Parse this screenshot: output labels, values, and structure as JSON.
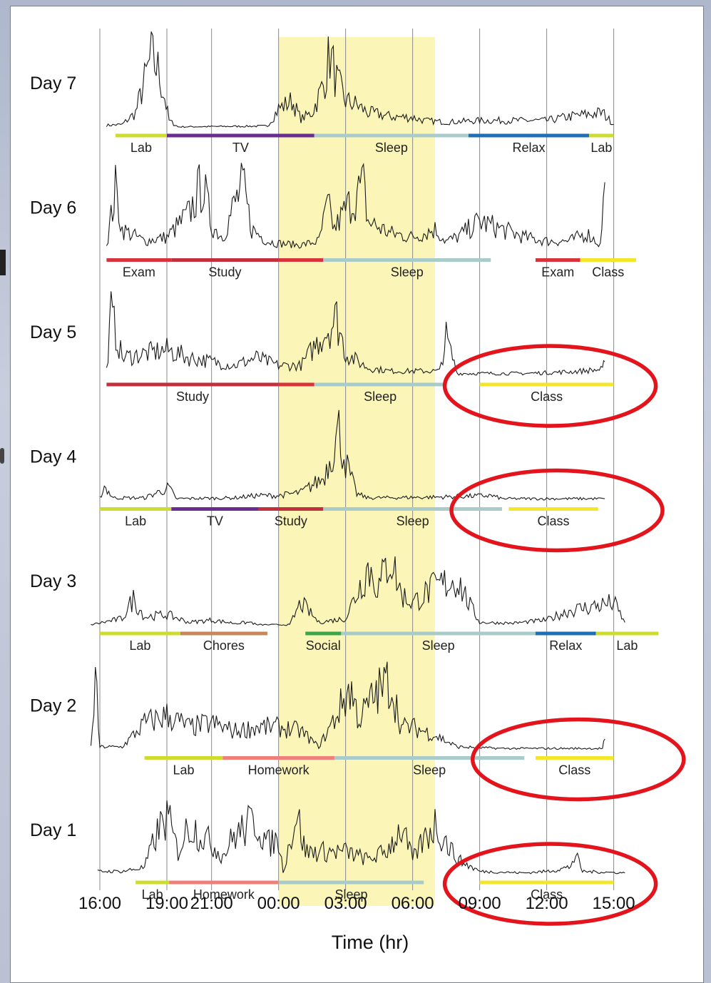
{
  "chart_data": {
    "type": "line",
    "xlabel": "Time (hr)",
    "x_ticks": [
      "16:00",
      "19:00",
      "21:00",
      "00:00",
      "03:00",
      "06:00",
      "09:00",
      "12:00",
      "15:00"
    ],
    "highlight_band": {
      "label": "",
      "start": "00:00",
      "end": "07:00",
      "color": "#fbf6b8"
    },
    "activity_colors": {
      "Lab": "#cddc2e",
      "TV": "#6b2c91",
      "Sleep": "#a9cccb",
      "Relax": "#1e6fb5",
      "Exam": "#d8323a",
      "Study": "#c0303d",
      "Class": "#f3e62c",
      "Chores": "#c8875a",
      "Social": "#3aa648",
      "Homework": "#f07f7a"
    },
    "days": [
      {
        "label": "Day 7",
        "signal": [
          [
            16.3,
            0.04
          ],
          [
            17,
            0.05
          ],
          [
            17.6,
            0.2
          ],
          [
            18,
            0.6
          ],
          [
            18.3,
            0.9
          ],
          [
            18.6,
            0.75
          ],
          [
            18.9,
            0.4
          ],
          [
            19.1,
            0.1
          ],
          [
            19.5,
            0.02
          ],
          [
            23.5,
            0.03
          ],
          [
            24,
            0.25
          ],
          [
            24.6,
            0.35
          ],
          [
            25,
            0.12
          ],
          [
            25.5,
            0.2
          ],
          [
            26,
            0.55
          ],
          [
            26.3,
            0.95
          ],
          [
            26.6,
            0.6
          ],
          [
            27,
            0.35
          ],
          [
            27.5,
            0.3
          ],
          [
            28,
            0.2
          ],
          [
            28.5,
            0.18
          ],
          [
            29,
            0.15
          ],
          [
            30,
            0.14
          ],
          [
            30.5,
            0.1
          ],
          [
            31.5,
            0.08
          ],
          [
            33,
            0.1
          ],
          [
            36,
            0.1
          ],
          [
            37,
            0.15
          ],
          [
            38.5,
            0.2
          ],
          [
            39,
            0.05
          ]
        ],
        "segments": [
          {
            "activity": "Lab",
            "start": 16.7,
            "end": 19.0,
            "label": "Lab"
          },
          {
            "activity": "TV",
            "start": 19.0,
            "end": 25.6,
            "label": "TV"
          },
          {
            "activity": "Sleep",
            "start": 25.6,
            "end": 32.5,
            "label": "Sleep"
          },
          {
            "activity": "Relax",
            "start": 32.5,
            "end": 37.9,
            "label": "Relax"
          },
          {
            "activity": "Lab",
            "start": 37.9,
            "end": 39.0,
            "label": "Lab"
          }
        ]
      },
      {
        "label": "Day 6",
        "signal": [
          [
            16.3,
            0.1
          ],
          [
            16.7,
            0.8
          ],
          [
            17,
            0.3
          ],
          [
            18,
            0.15
          ],
          [
            19,
            0.2
          ],
          [
            20,
            0.5
          ],
          [
            20.6,
            0.9
          ],
          [
            21,
            0.35
          ],
          [
            21.5,
            0.2
          ],
          [
            22,
            0.6
          ],
          [
            22.4,
            0.85
          ],
          [
            22.8,
            0.3
          ],
          [
            23.5,
            0.15
          ],
          [
            24,
            0.12
          ],
          [
            25,
            0.1
          ],
          [
            25.8,
            0.15
          ],
          [
            26.2,
            0.6
          ],
          [
            26.5,
            0.3
          ],
          [
            27,
            0.55
          ],
          [
            27.8,
            0.85
          ],
          [
            28,
            0.4
          ],
          [
            29,
            0.25
          ],
          [
            30,
            0.2
          ],
          [
            31,
            0.3
          ],
          [
            31.5,
            0.15
          ],
          [
            32,
            0.2
          ],
          [
            33,
            0.4
          ],
          [
            34,
            0.3
          ],
          [
            35,
            0.2
          ],
          [
            36,
            0.15
          ],
          [
            37,
            0.15
          ],
          [
            37.8,
            0.25
          ],
          [
            38.4,
            0.1
          ],
          [
            38.6,
            0.9
          ]
        ],
        "segments": [
          {
            "activity": "Exam",
            "start": 16.3,
            "end": 19.2,
            "label": "Exam"
          },
          {
            "activity": "Study",
            "start": 19.2,
            "end": 24.0,
            "label": "Study"
          },
          {
            "activity": "Exam",
            "start": 24.0,
            "end": 26.0,
            "label": ""
          },
          {
            "activity": "Sleep",
            "start": 26.0,
            "end": 33.5,
            "label": "Sleep"
          },
          {
            "activity": "Exam",
            "start": 35.5,
            "end": 37.5,
            "label": "Exam"
          },
          {
            "activity": "Class",
            "start": 37.5,
            "end": 40.0,
            "label": "Class"
          }
        ]
      },
      {
        "label": "Day 5",
        "signal": [
          [
            16.3,
            0.1
          ],
          [
            16.5,
            0.8
          ],
          [
            17,
            0.25
          ],
          [
            18,
            0.3
          ],
          [
            19,
            0.35
          ],
          [
            20,
            0.25
          ],
          [
            21,
            0.2
          ],
          [
            22,
            0.15
          ],
          [
            23,
            0.25
          ],
          [
            24,
            0.15
          ],
          [
            25,
            0.15
          ],
          [
            26,
            0.55
          ],
          [
            26.6,
            0.75
          ],
          [
            27,
            0.3
          ],
          [
            28,
            0.12
          ],
          [
            29,
            0.08
          ],
          [
            31.2,
            0.08
          ],
          [
            31.5,
            0.5
          ],
          [
            32,
            0.05
          ],
          [
            35,
            0.05
          ],
          [
            37,
            0.07
          ],
          [
            38.5,
            0.1
          ],
          [
            38.6,
            0.2
          ]
        ],
        "segments": [
          {
            "activity": "Study",
            "start": 16.3,
            "end": 24.0,
            "label": "Study"
          },
          {
            "activity": "Exam",
            "start": 24.0,
            "end": 25.6,
            "label": ""
          },
          {
            "activity": "Sleep",
            "start": 25.6,
            "end": 31.5,
            "label": "Sleep"
          },
          {
            "activity": "Class",
            "start": 33.0,
            "end": 39.0,
            "label": "Class"
          }
        ]
      },
      {
        "label": "Day 4",
        "signal": [
          [
            16.0,
            0.05
          ],
          [
            16.2,
            0.2
          ],
          [
            16.6,
            0.05
          ],
          [
            18,
            0.05
          ],
          [
            19.1,
            0.18
          ],
          [
            19.4,
            0.04
          ],
          [
            22,
            0.05
          ],
          [
            23,
            0.08
          ],
          [
            24,
            0.08
          ],
          [
            25,
            0.12
          ],
          [
            26,
            0.3
          ],
          [
            26.7,
            0.9
          ],
          [
            27,
            0.5
          ],
          [
            27.5,
            0.1
          ],
          [
            28,
            0.05
          ],
          [
            31,
            0.06
          ],
          [
            33.5,
            0.08
          ],
          [
            34,
            0.04
          ],
          [
            38,
            0.04
          ],
          [
            38.6,
            0.04
          ]
        ],
        "segments": [
          {
            "activity": "Lab",
            "start": 16.0,
            "end": 19.2,
            "label": "Lab"
          },
          {
            "activity": "TV",
            "start": 19.2,
            "end": 23.1,
            "label": "TV"
          },
          {
            "activity": "Study",
            "start": 23.1,
            "end": 26.0,
            "label": "Study"
          },
          {
            "activity": "Sleep",
            "start": 26.0,
            "end": 34.0,
            "label": "Sleep"
          },
          {
            "activity": "Class",
            "start": 34.3,
            "end": 38.3,
            "label": "Class"
          }
        ]
      },
      {
        "label": "Day 3",
        "signal": [
          [
            15.6,
            0.02
          ],
          [
            17,
            0.1
          ],
          [
            17.5,
            0.35
          ],
          [
            18,
            0.12
          ],
          [
            19,
            0.15
          ],
          [
            20,
            0.05
          ],
          [
            21,
            0.08
          ],
          [
            22,
            0.04
          ],
          [
            22.8,
            0.05
          ],
          [
            23,
            0.02
          ],
          [
            24.5,
            0.02
          ],
          [
            25,
            0.3
          ],
          [
            25.8,
            0.05
          ],
          [
            27,
            0.1
          ],
          [
            28,
            0.75
          ],
          [
            28.5,
            0.5
          ],
          [
            29,
            0.9
          ],
          [
            29.5,
            0.4
          ],
          [
            30,
            0.3
          ],
          [
            31,
            0.5
          ],
          [
            32,
            0.6
          ],
          [
            32.5,
            0.3
          ],
          [
            33,
            0.05
          ],
          [
            34.5,
            0.04
          ],
          [
            36,
            0.08
          ],
          [
            37,
            0.2
          ],
          [
            38,
            0.25
          ],
          [
            39,
            0.3
          ],
          [
            39.5,
            0.05
          ]
        ],
        "segments": [
          {
            "activity": "Lab",
            "start": 16.0,
            "end": 19.6,
            "label": "Lab"
          },
          {
            "activity": "Chores",
            "start": 19.6,
            "end": 23.5,
            "label": "Chores"
          },
          {
            "activity": "Social",
            "start": 25.2,
            "end": 26.8,
            "label": "Social"
          },
          {
            "activity": "Sleep",
            "start": 26.8,
            "end": 35.5,
            "label": "Sleep"
          },
          {
            "activity": "Relax",
            "start": 35.5,
            "end": 38.2,
            "label": "Relax"
          },
          {
            "activity": "Lab",
            "start": 38.2,
            "end": 41.0,
            "label": "Lab"
          }
        ]
      },
      {
        "label": "Day 2",
        "signal": [
          [
            15.6,
            0.05
          ],
          [
            15.8,
            0.9
          ],
          [
            16,
            0.05
          ],
          [
            17,
            0.05
          ],
          [
            18,
            0.35
          ],
          [
            19,
            0.45
          ],
          [
            20,
            0.3
          ],
          [
            21,
            0.35
          ],
          [
            22,
            0.25
          ],
          [
            23,
            0.3
          ],
          [
            24,
            0.3
          ],
          [
            25,
            0.25
          ],
          [
            25.8,
            0.05
          ],
          [
            26.5,
            0.4
          ],
          [
            27.2,
            0.8
          ],
          [
            27.6,
            0.4
          ],
          [
            28.3,
            0.7
          ],
          [
            29,
            0.9
          ],
          [
            29.5,
            0.3
          ],
          [
            30,
            0.3
          ],
          [
            31,
            0.2
          ],
          [
            32,
            0.05
          ],
          [
            34,
            0.03
          ],
          [
            37,
            0.03
          ],
          [
            38.5,
            0.03
          ],
          [
            38.6,
            0.15
          ]
        ],
        "segments": [
          {
            "activity": "Lab",
            "start": 18.0,
            "end": 21.5,
            "label": "Lab"
          },
          {
            "activity": "Homework",
            "start": 21.5,
            "end": 26.5,
            "label": "Homework"
          },
          {
            "activity": "Sleep",
            "start": 26.5,
            "end": 35.0,
            "label": "Sleep"
          },
          {
            "activity": "Class",
            "start": 35.5,
            "end": 39.0,
            "label": "Class"
          }
        ]
      },
      {
        "label": "Day 1",
        "signal": [
          [
            15.9,
            0.05
          ],
          [
            17,
            0.05
          ],
          [
            18,
            0.1
          ],
          [
            18.5,
            0.5
          ],
          [
            19,
            0.75
          ],
          [
            19.5,
            0.3
          ],
          [
            20,
            0.65
          ],
          [
            21,
            0.4
          ],
          [
            21.5,
            0.25
          ],
          [
            22,
            0.5
          ],
          [
            23,
            0.7
          ],
          [
            23.5,
            0.4
          ],
          [
            24,
            0.45
          ],
          [
            24.2,
            0.05
          ],
          [
            24.8,
            0.8
          ],
          [
            25.2,
            0.3
          ],
          [
            26,
            0.3
          ],
          [
            27,
            0.3
          ],
          [
            28,
            0.2
          ],
          [
            28.8,
            0.3
          ],
          [
            29.5,
            0.6
          ],
          [
            30,
            0.2
          ],
          [
            30.5,
            0.45
          ],
          [
            31,
            0.65
          ],
          [
            32,
            0.2
          ],
          [
            33,
            0.05
          ],
          [
            35,
            0.03
          ],
          [
            36,
            0.05
          ],
          [
            37,
            0.1
          ],
          [
            37.3,
            0.25
          ],
          [
            37.6,
            0.05
          ],
          [
            39.5,
            0.03
          ]
        ],
        "segments": [
          {
            "activity": "Lab",
            "start": 17.6,
            "end": 19.1,
            "label": "Lab"
          },
          {
            "activity": "Homework",
            "start": 19.1,
            "end": 24.0,
            "label": "Homework"
          },
          {
            "activity": "Sleep",
            "start": 24.0,
            "end": 30.5,
            "label": "Sleep"
          },
          {
            "activity": "Class",
            "start": 33.0,
            "end": 39.0,
            "label": "Class"
          }
        ]
      }
    ],
    "circled_labels": [
      "Class",
      "Class",
      "Class",
      "Class"
    ],
    "circle_color": "#e3141c"
  }
}
